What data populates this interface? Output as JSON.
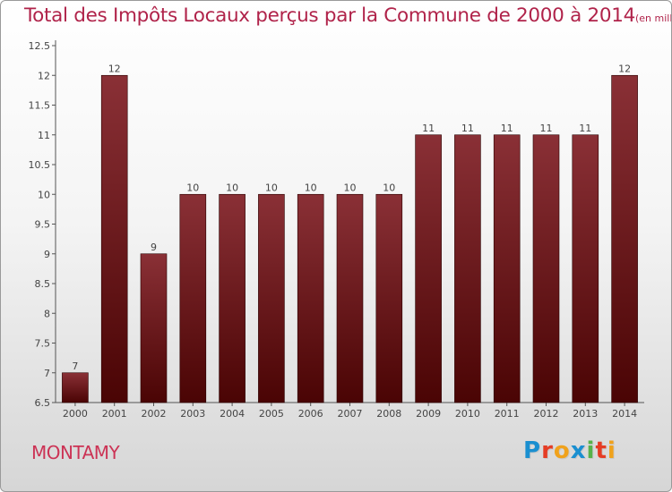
{
  "header": {
    "title": "Total des Impôts Locaux perçus par la Commune de 2000 à 2014",
    "unit_note": "(en milliers d'€)"
  },
  "footer": {
    "commune": "MONTAMY",
    "brand": [
      "P",
      "r",
      "o",
      "x",
      "i",
      "t",
      "i"
    ],
    "brand_colors": [
      "#1a8fd0",
      "#e53c24",
      "#f0a21c",
      "#1a8fd0",
      "#57b24a",
      "#e53c24",
      "#f0a21c"
    ]
  },
  "colors": {
    "bar_top": "#8a3036",
    "bar_bottom": "#4a0404",
    "bar_edge": "#2a0000"
  },
  "chart_data": {
    "type": "bar",
    "title": "Total des Impôts Locaux perçus par la Commune de 2000 à 2014",
    "xlabel": "",
    "ylabel": "",
    "categories": [
      "2000",
      "2001",
      "2002",
      "2003",
      "2004",
      "2005",
      "2006",
      "2007",
      "2008",
      "2009",
      "2010",
      "2011",
      "2012",
      "2013",
      "2014"
    ],
    "values": [
      7,
      12,
      9,
      10,
      10,
      10,
      10,
      10,
      10,
      11,
      11,
      11,
      11,
      11,
      12
    ],
    "data_labels": [
      "7",
      "12",
      "9",
      "10",
      "10",
      "10",
      "10",
      "10",
      "10",
      "11",
      "11",
      "11",
      "11",
      "11",
      "12"
    ],
    "ylim": [
      6.5,
      12.5
    ],
    "yticks": [
      6.5,
      7,
      7.5,
      8,
      8.5,
      9,
      9.5,
      10,
      10.5,
      11,
      11.5,
      12,
      12.5
    ],
    "ytick_labels": [
      "6.5",
      "7",
      "7.5",
      "8",
      "8.5",
      "9",
      "9.5",
      "10",
      "10.5",
      "11",
      "11.5",
      "12",
      "12.5"
    ],
    "grid": false
  }
}
